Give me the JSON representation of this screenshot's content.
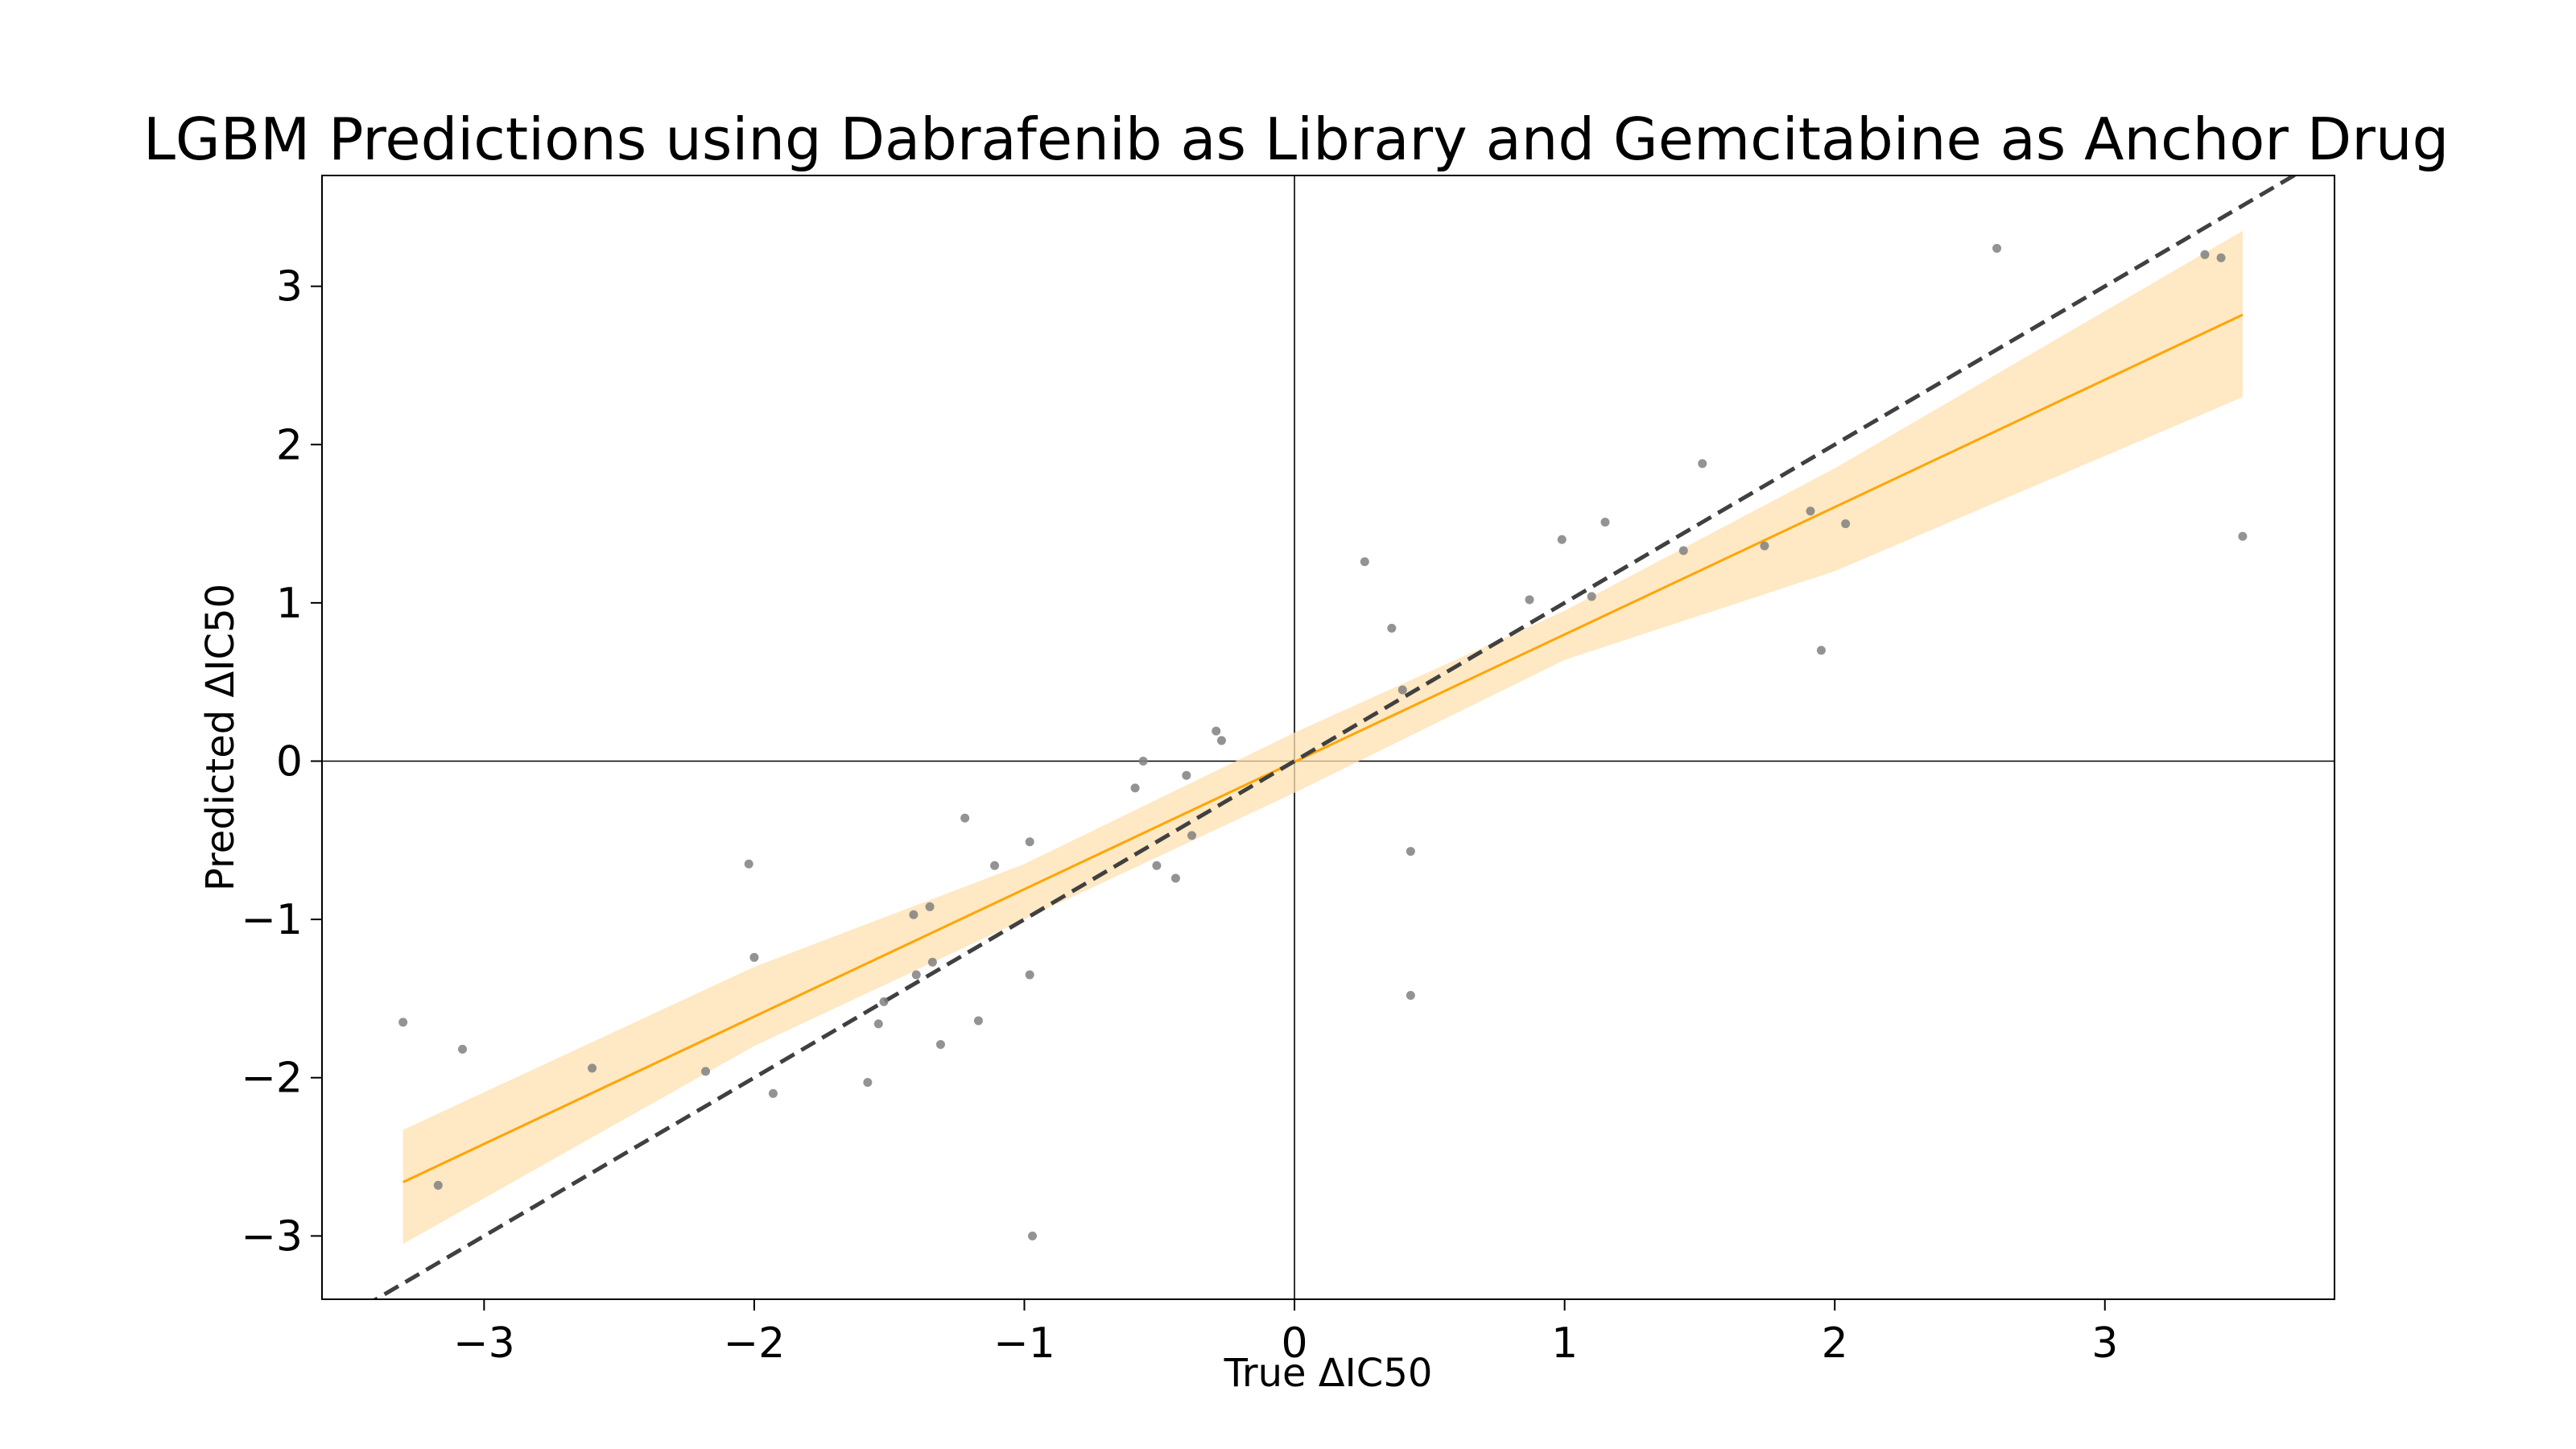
{
  "chart_data": {
    "type": "scatter",
    "title": "LGBM Predictions using Dabrafenib as Library and Gemcitabine as Anchor Drug",
    "xlabel": "True ΔIC50",
    "ylabel": "Predicted ΔIC50",
    "xlim": [
      -3.6,
      3.85
    ],
    "ylim": [
      -3.4,
      3.7
    ],
    "x_ticks": [
      -3,
      -2,
      -1,
      0,
      1,
      2,
      3
    ],
    "y_ticks": [
      -3,
      -2,
      -1,
      0,
      1,
      2,
      3
    ],
    "x_tick_labels": [
      "−3",
      "−2",
      "−1",
      "0",
      "1",
      "2",
      "3"
    ],
    "y_tick_labels": [
      "−3",
      "−2",
      "−1",
      "0",
      "1",
      "2",
      "3"
    ],
    "grid": false,
    "legend": "none",
    "colors": {
      "points": "#808080",
      "regression_line": "#FFA500",
      "confidence_band": "#FFE0B0",
      "identity_line": "#404040",
      "zero_lines": "#000000"
    },
    "series": [
      {
        "kind": "points",
        "x": [
          -3.3,
          -3.17,
          -3.08,
          -2.6,
          -2.18,
          -2.02,
          -2.0,
          -1.93,
          -1.58,
          -1.54,
          -1.52,
          -1.41,
          -1.4,
          -1.35,
          -1.34,
          -1.31,
          -1.22,
          -1.17,
          -1.11,
          -0.98,
          -0.98,
          -0.97,
          -0.59,
          -0.56,
          -0.51,
          -0.44,
          -0.4,
          -0.38,
          -0.29,
          -0.27,
          0.26,
          0.36,
          0.4,
          0.43,
          0.43,
          0.87,
          0.99,
          1.1,
          1.15,
          1.44,
          1.51,
          1.74,
          1.91,
          1.95,
          2.04,
          2.6,
          3.37,
          3.43,
          3.51
        ],
        "y": [
          -1.65,
          -2.68,
          -1.82,
          -1.94,
          -1.96,
          -0.65,
          -1.24,
          -2.1,
          -2.03,
          -1.66,
          -1.52,
          -0.97,
          -1.35,
          -0.92,
          -1.27,
          -1.79,
          -0.36,
          -1.64,
          -0.66,
          -0.51,
          -1.35,
          -3.0,
          -0.17,
          0.0,
          -0.66,
          -0.74,
          -0.09,
          -0.47,
          0.19,
          0.13,
          1.26,
          0.84,
          0.45,
          -0.57,
          -1.48,
          1.02,
          1.4,
          1.04,
          1.51,
          1.33,
          1.88,
          1.36,
          1.58,
          0.7,
          1.5,
          3.24,
          3.2,
          3.18,
          1.42
        ]
      },
      {
        "kind": "regression_line",
        "x": [
          -3.3,
          3.51
        ],
        "y": [
          -2.66,
          2.82
        ]
      },
      {
        "kind": "confidence_band",
        "x": [
          -3.3,
          -2,
          -1,
          0,
          1,
          2,
          3.51
        ],
        "lower": [
          -3.05,
          -1.8,
          -1.0,
          -0.2,
          0.64,
          1.2,
          2.3
        ],
        "upper": [
          -2.33,
          -1.3,
          -0.65,
          0.18,
          0.95,
          1.85,
          3.35
        ]
      },
      {
        "kind": "identity_line",
        "x": [
          -3.6,
          3.85
        ],
        "y": [
          -3.6,
          3.85
        ]
      }
    ]
  }
}
